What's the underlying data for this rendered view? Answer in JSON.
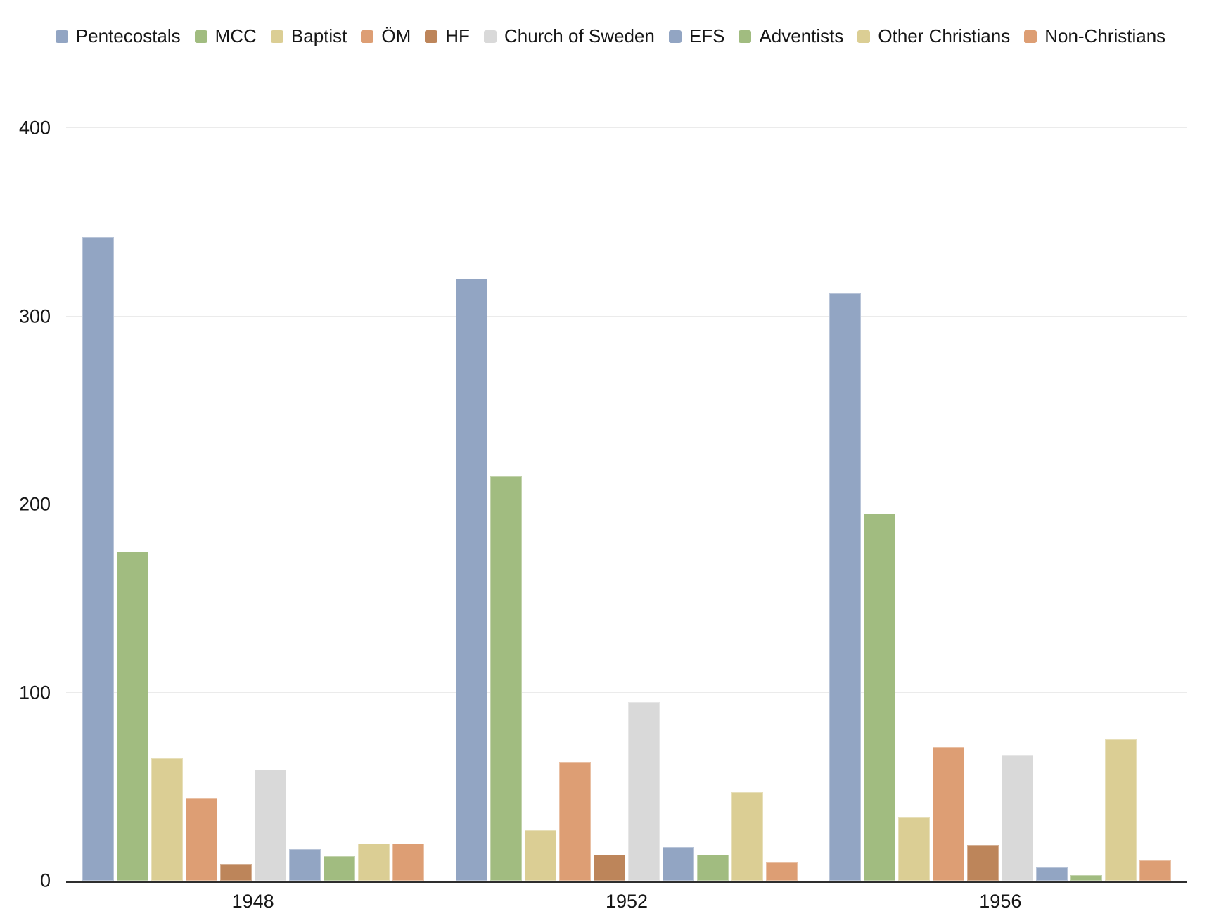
{
  "chart_data": {
    "type": "bar",
    "title": "",
    "xlabel": "",
    "ylabel": "",
    "categories": [
      "1948",
      "1952",
      "1956"
    ],
    "series": [
      {
        "name": "Pentecostals",
        "color": "#92a5c3",
        "values": [
          342,
          320,
          312
        ]
      },
      {
        "name": "MCC",
        "color": "#a1bc80",
        "values": [
          175,
          215,
          195
        ]
      },
      {
        "name": "Baptist",
        "color": "#dbce94",
        "values": [
          65,
          27,
          34
        ]
      },
      {
        "name": "ÖM",
        "color": "#dd9e74",
        "values": [
          44,
          63,
          71
        ]
      },
      {
        "name": "HF",
        "color": "#bd855a",
        "values": [
          9,
          14,
          19
        ]
      },
      {
        "name": "Church of Sweden",
        "color": "#d9d9d9",
        "values": [
          59,
          95,
          67
        ]
      },
      {
        "name": "EFS",
        "color": "#92a5c3",
        "values": [
          17,
          18,
          7
        ]
      },
      {
        "name": "Adventists",
        "color": "#a1bc80",
        "values": [
          13,
          14,
          3
        ]
      },
      {
        "name": "Other Christians",
        "color": "#dbce94",
        "values": [
          20,
          47,
          75
        ]
      },
      {
        "name": "Non-Christians",
        "color": "#dd9e74",
        "values": [
          20,
          10,
          11
        ]
      }
    ],
    "ylim": [
      0,
      400
    ],
    "yticks": [
      0,
      100,
      200,
      300,
      400
    ],
    "grid": true,
    "legend_position": "top",
    "axis_color": "#2e2e2e",
    "gridline_color": "#ebebeb",
    "text_color": "#161616"
  }
}
